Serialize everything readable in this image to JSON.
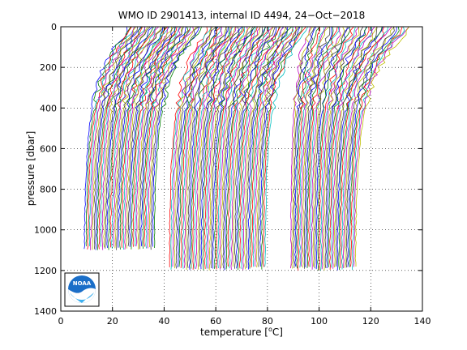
{
  "chart_data": {
    "type": "line",
    "title": "WMO ID 2901413, internal ID 4494, 24−Oct−2018",
    "xlabel_pre": "temperature [",
    "xlabel_sup": "o",
    "xlabel_post": "C]",
    "ylabel": "pressure [dbar]",
    "xlim": [
      0,
      140
    ],
    "ylim": [
      1400,
      0
    ],
    "y_reversed": true,
    "grid": "dotted",
    "xticks": [
      0,
      20,
      40,
      60,
      80,
      100,
      120,
      140
    ],
    "yticks": [
      0,
      200,
      400,
      600,
      800,
      1000,
      1200,
      1400
    ],
    "xtick_labels": [
      "0",
      "20",
      "40",
      "60",
      "80",
      "100",
      "120",
      "140"
    ],
    "ytick_labels": [
      "0",
      "200",
      "400",
      "600",
      "800",
      "1000",
      "1200",
      "1400"
    ],
    "series_note": "waterfall of offset temperature profiles",
    "profile_groups": [
      {
        "offset_start": 9,
        "offset_end": 36,
        "count": 44,
        "max_depth": 1100,
        "shallow_x_start": 26,
        "shallow_x_end": 54
      },
      {
        "offset_start": 42,
        "offset_end": 79,
        "count": 58,
        "max_depth": 1200,
        "shallow_x_start": 57,
        "shallow_x_end": 95
      },
      {
        "offset_start": 89,
        "offset_end": 114,
        "count": 44,
        "max_depth": 1200,
        "shallow_x_start": 96,
        "shallow_x_end": 135
      }
    ],
    "colors": [
      "#0000ff",
      "#008000",
      "#ff0000",
      "#00bfbf",
      "#bf00bf",
      "#bfbf00",
      "#404040"
    ],
    "logo_text": "NOAA"
  }
}
